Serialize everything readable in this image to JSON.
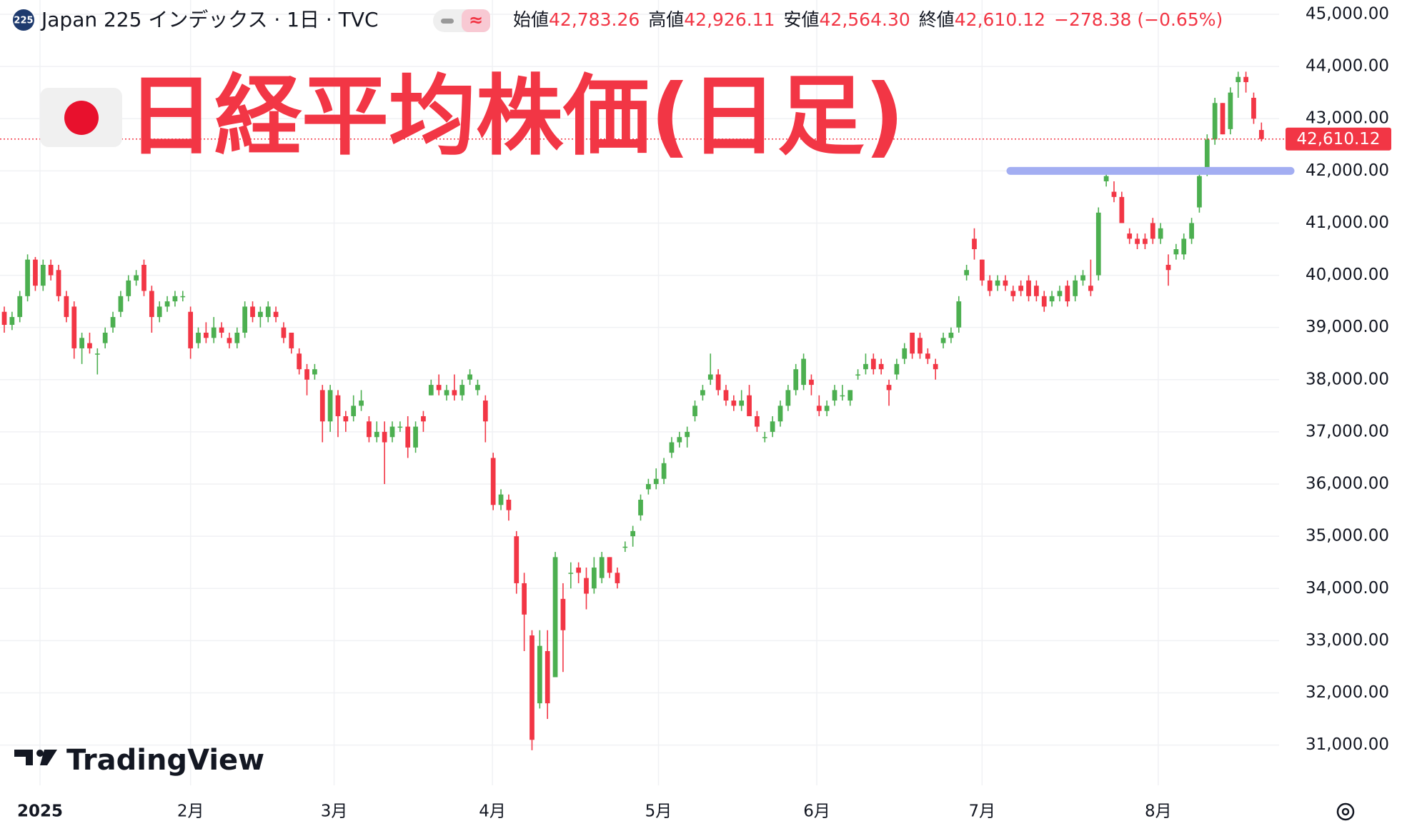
{
  "header": {
    "symbol_badge": "225",
    "title": "Japan 225 インデックス · 1日 · TVC",
    "toggle_symbol": "≈",
    "ohlc": [
      {
        "label": "始値",
        "value": "42,783.26"
      },
      {
        "label": "高値",
        "value": "42,926.11"
      },
      {
        "label": "安値",
        "value": "42,564.30"
      },
      {
        "label": "終値",
        "value": "42,610.12"
      }
    ],
    "change": "−278.38 (−0.65%)"
  },
  "overlay_title": "日経平均株価(日足)",
  "brand": "TradingView",
  "chart_data": {
    "type": "candlestick",
    "up_color": "#4caf50",
    "down_color": "#f23645",
    "ylim": [
      30200,
      45300
    ],
    "yticks": [
      {
        "value": 31000,
        "label": "31,000.00"
      },
      {
        "value": 32000,
        "label": "32,000.00"
      },
      {
        "value": 33000,
        "label": "33,000.00"
      },
      {
        "value": 34000,
        "label": "34,000.00"
      },
      {
        "value": 35000,
        "label": "35,000.00"
      },
      {
        "value": 36000,
        "label": "36,000.00"
      },
      {
        "value": 37000,
        "label": "37,000.00"
      },
      {
        "value": 38000,
        "label": "38,000.00"
      },
      {
        "value": 39000,
        "label": "39,000.00"
      },
      {
        "value": 40000,
        "label": "40,000.00"
      },
      {
        "value": 41000,
        "label": "41,000.00"
      },
      {
        "value": 42000,
        "label": "42,000.00"
      },
      {
        "value": 43000,
        "label": "43,000.00"
      },
      {
        "value": 44000,
        "label": "44,000.00"
      },
      {
        "value": 45000,
        "label": "45,000.00"
      }
    ],
    "xticks": [
      {
        "value": 4.6,
        "label": "2025"
      },
      {
        "value": 24,
        "label": "2月"
      },
      {
        "value": 42.5,
        "label": "3月"
      },
      {
        "value": 62.9,
        "label": "4月"
      },
      {
        "value": 84.3,
        "label": "5月"
      },
      {
        "value": 104.7,
        "label": "6月"
      },
      {
        "value": 126,
        "label": "7月"
      },
      {
        "value": 148.7,
        "label": "8月"
      }
    ],
    "grid": true,
    "last_price_label": "42,610.12",
    "hline": {
      "value": 42000,
      "color": "#a3aef2"
    },
    "ohlc": [
      [
        39300,
        39400,
        38900,
        39050
      ],
      [
        39050,
        39300,
        38950,
        39200
      ],
      [
        39200,
        39700,
        39100,
        39600
      ],
      [
        39600,
        40400,
        39500,
        40300
      ],
      [
        40300,
        40350,
        39700,
        39800
      ],
      [
        39800,
        40300,
        39700,
        40200
      ],
      [
        40200,
        40300,
        39900,
        40000
      ],
      [
        40100,
        40200,
        39500,
        39600
      ],
      [
        39600,
        39700,
        39100,
        39200
      ],
      [
        39400,
        39500,
        38400,
        38600
      ],
      [
        38600,
        38900,
        38300,
        38800
      ],
      [
        38700,
        38900,
        38500,
        38600
      ],
      [
        38500,
        38600,
        38100,
        38500
      ],
      [
        38700,
        39000,
        38600,
        38900
      ],
      [
        39000,
        39300,
        38900,
        39200
      ],
      [
        39300,
        39700,
        39200,
        39600
      ],
      [
        39600,
        40000,
        39500,
        39900
      ],
      [
        39900,
        40100,
        39800,
        40000
      ],
      [
        40200,
        40300,
        39600,
        39700
      ],
      [
        39700,
        39800,
        38900,
        39200
      ],
      [
        39200,
        39500,
        39100,
        39400
      ],
      [
        39400,
        39600,
        39300,
        39500
      ],
      [
        39500,
        39700,
        39400,
        39600
      ],
      [
        39600,
        39700,
        39500,
        39600
      ],
      [
        39300,
        39400,
        38400,
        38600
      ],
      [
        38700,
        39000,
        38600,
        38900
      ],
      [
        38900,
        39100,
        38700,
        38800
      ],
      [
        38800,
        39200,
        38700,
        39000
      ],
      [
        39000,
        39100,
        38800,
        38900
      ],
      [
        38800,
        38900,
        38600,
        38700
      ],
      [
        38700,
        39000,
        38600,
        38900
      ],
      [
        38900,
        39500,
        38800,
        39400
      ],
      [
        39400,
        39500,
        39100,
        39200
      ],
      [
        39200,
        39400,
        39000,
        39300
      ],
      [
        39200,
        39500,
        39100,
        39400
      ],
      [
        39300,
        39400,
        39100,
        39200
      ],
      [
        39000,
        39100,
        38700,
        38800
      ],
      [
        38900,
        38900,
        38500,
        38600
      ],
      [
        38500,
        38600,
        38100,
        38200
      ],
      [
        38200,
        38300,
        37700,
        38000
      ],
      [
        38100,
        38300,
        38000,
        38200
      ],
      [
        37800,
        37900,
        36800,
        37200
      ],
      [
        37200,
        37900,
        37000,
        37800
      ],
      [
        37700,
        37800,
        36900,
        37300
      ],
      [
        37300,
        37400,
        37000,
        37200
      ],
      [
        37300,
        37700,
        37200,
        37500
      ],
      [
        37500,
        37800,
        37400,
        37600
      ],
      [
        37200,
        37300,
        36800,
        36900
      ],
      [
        36900,
        37200,
        36800,
        37000
      ],
      [
        37000,
        37200,
        36000,
        36800
      ],
      [
        36900,
        37200,
        36800,
        37100
      ],
      [
        37100,
        37200,
        37000,
        37100
      ],
      [
        37100,
        37300,
        36500,
        36700
      ],
      [
        36700,
        37200,
        36600,
        37100
      ],
      [
        37300,
        37400,
        37000,
        37200
      ],
      [
        37700,
        38000,
        37700,
        37900
      ],
      [
        37900,
        38100,
        37700,
        37800
      ],
      [
        37700,
        37900,
        37600,
        37800
      ],
      [
        37800,
        38100,
        37600,
        37700
      ],
      [
        37700,
        38000,
        37600,
        37900
      ],
      [
        38000,
        38200,
        37900,
        38100
      ],
      [
        37800,
        38000,
        37700,
        37900
      ],
      [
        37600,
        37700,
        36800,
        37200
      ],
      [
        36500,
        36600,
        35500,
        35600
      ],
      [
        35600,
        35900,
        35500,
        35800
      ],
      [
        35700,
        35800,
        35300,
        35500
      ],
      [
        35000,
        35100,
        33900,
        34100
      ],
      [
        34100,
        34300,
        32800,
        33500
      ],
      [
        33100,
        33200,
        30900,
        31100
      ],
      [
        31800,
        33200,
        31700,
        32900
      ],
      [
        32800,
        33200,
        31500,
        31800
      ],
      [
        32300,
        34700,
        32300,
        34600
      ],
      [
        33800,
        34100,
        32400,
        33200
      ],
      [
        34300,
        34500,
        34000,
        34300
      ],
      [
        34400,
        34500,
        34100,
        34300
      ],
      [
        34200,
        34400,
        33600,
        33900
      ],
      [
        34000,
        34600,
        33900,
        34400
      ],
      [
        34200,
        34700,
        34100,
        34600
      ],
      [
        34600,
        34600,
        34200,
        34300
      ],
      [
        34300,
        34400,
        34000,
        34100
      ],
      [
        34800,
        34900,
        34700,
        34800
      ],
      [
        35000,
        35200,
        34800,
        35100
      ],
      [
        35400,
        35800,
        35300,
        35700
      ],
      [
        35900,
        36100,
        35800,
        36000
      ],
      [
        36000,
        36300,
        35900,
        36100
      ],
      [
        36100,
        36500,
        36000,
        36400
      ],
      [
        36600,
        36900,
        36500,
        36800
      ],
      [
        36800,
        37000,
        36700,
        36900
      ],
      [
        36900,
        37100,
        36700,
        37000
      ],
      [
        37300,
        37600,
        37200,
        37500
      ],
      [
        37700,
        37900,
        37600,
        37800
      ],
      [
        38000,
        38500,
        37900,
        38100
      ],
      [
        38100,
        38200,
        37700,
        37800
      ],
      [
        37800,
        37900,
        37500,
        37600
      ],
      [
        37600,
        37700,
        37400,
        37500
      ],
      [
        37500,
        37800,
        37400,
        37600
      ],
      [
        37700,
        37900,
        37300,
        37300
      ],
      [
        37300,
        37400,
        37000,
        37100
      ],
      [
        36900,
        37000,
        36800,
        36900
      ],
      [
        37000,
        37300,
        36900,
        37200
      ],
      [
        37200,
        37600,
        37100,
        37500
      ],
      [
        37500,
        37900,
        37400,
        37800
      ],
      [
        37800,
        38300,
        37700,
        38200
      ],
      [
        37900,
        38500,
        37800,
        38400
      ],
      [
        38000,
        38100,
        37700,
        37900
      ],
      [
        37500,
        37700,
        37300,
        37400
      ],
      [
        37400,
        37600,
        37300,
        37500
      ],
      [
        37600,
        37900,
        37500,
        37800
      ],
      [
        37700,
        37900,
        37600,
        37700
      ],
      [
        37600,
        37800,
        37500,
        37800
      ],
      [
        38100,
        38200,
        38000,
        38100
      ],
      [
        38200,
        38500,
        38100,
        38300
      ],
      [
        38400,
        38500,
        38100,
        38200
      ],
      [
        38300,
        38400,
        38100,
        38200
      ],
      [
        37900,
        38000,
        37500,
        37800
      ],
      [
        38100,
        38400,
        38000,
        38300
      ],
      [
        38400,
        38700,
        38300,
        38600
      ],
      [
        38900,
        38900,
        38400,
        38500
      ],
      [
        38800,
        38900,
        38400,
        38500
      ],
      [
        38500,
        38600,
        38300,
        38400
      ],
      [
        38300,
        38400,
        38000,
        38200
      ],
      [
        38700,
        38900,
        38600,
        38800
      ],
      [
        38800,
        39000,
        38700,
        38900
      ],
      [
        39000,
        39600,
        38900,
        39500
      ],
      [
        40000,
        40200,
        39900,
        40100
      ],
      [
        40700,
        40900,
        40300,
        40500
      ],
      [
        40300,
        40300,
        39800,
        39900
      ],
      [
        39900,
        40000,
        39600,
        39700
      ],
      [
        39800,
        40000,
        39700,
        39900
      ],
      [
        39900,
        40000,
        39700,
        39800
      ],
      [
        39700,
        39800,
        39500,
        39600
      ],
      [
        39800,
        39900,
        39600,
        39700
      ],
      [
        39900,
        40000,
        39500,
        39600
      ],
      [
        39800,
        39900,
        39500,
        39600
      ],
      [
        39600,
        39700,
        39300,
        39400
      ],
      [
        39500,
        39700,
        39400,
        39600
      ],
      [
        39600,
        39800,
        39500,
        39700
      ],
      [
        39800,
        39900,
        39400,
        39500
      ],
      [
        39600,
        40000,
        39500,
        39900
      ],
      [
        39900,
        40100,
        39800,
        40000
      ],
      [
        39800,
        40300,
        39600,
        39700
      ],
      [
        40000,
        41300,
        39900,
        41200
      ],
      [
        41800,
        42000,
        41700,
        41900
      ],
      [
        41600,
        41800,
        41400,
        41500
      ],
      [
        41500,
        41600,
        41000,
        41000
      ],
      [
        40800,
        40900,
        40600,
        40700
      ],
      [
        40700,
        40800,
        40500,
        40600
      ],
      [
        40700,
        40800,
        40500,
        40600
      ],
      [
        41000,
        41100,
        40600,
        40700
      ],
      [
        40700,
        41000,
        40600,
        40900
      ],
      [
        40200,
        40400,
        39800,
        40100
      ],
      [
        40400,
        40600,
        40300,
        40500
      ],
      [
        40400,
        40800,
        40300,
        40700
      ],
      [
        40700,
        41100,
        40600,
        41000
      ],
      [
        41300,
        42000,
        41200,
        41900
      ],
      [
        42000,
        42700,
        41900,
        42600
      ],
      [
        42600,
        43400,
        42500,
        43300
      ],
      [
        43300,
        43300,
        42700,
        42700
      ],
      [
        42800,
        43600,
        42700,
        43500
      ],
      [
        43700,
        43900,
        43400,
        43800
      ],
      [
        43800,
        43900,
        43500,
        43700
      ],
      [
        43400,
        43500,
        42900,
        43000
      ],
      [
        42783.26,
        42926.11,
        42564.3,
        42610.12
      ]
    ]
  }
}
